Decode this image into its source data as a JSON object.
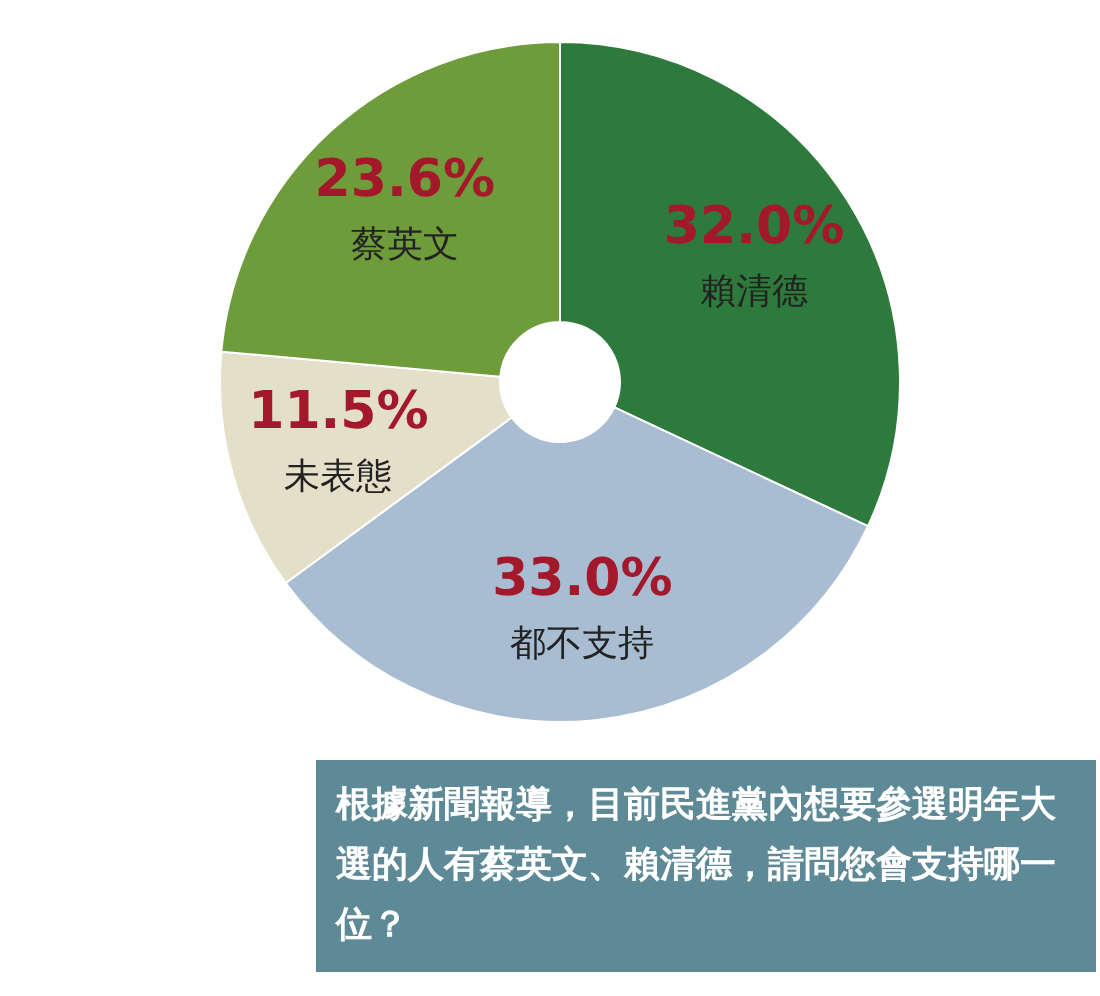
{
  "chart_data": {
    "type": "donut",
    "title": "根據新聞報導，目前民進黨內想要參選明年大選的人有蔡英文、賴清德，請問您會支持哪一位？",
    "categories": [
      "賴清德",
      "都不支持",
      "未表態",
      "蔡英文"
    ],
    "values": [
      32.0,
      33.0,
      11.5,
      23.6
    ],
    "value_labels": [
      "32.0%",
      "33.0%",
      "11.5%",
      "23.6%"
    ],
    "colors": [
      "#2e7a3c",
      "#a9bdd2",
      "#e3dfc8",
      "#6e9c3a"
    ],
    "legend": false
  }
}
